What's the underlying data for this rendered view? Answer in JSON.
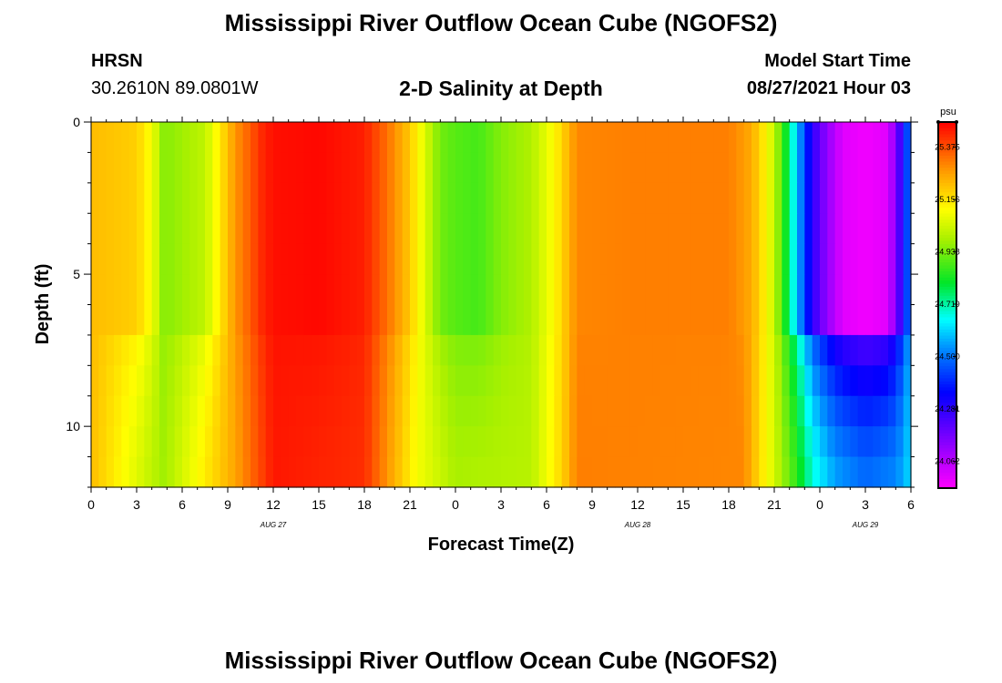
{
  "title": "Mississippi River Outflow Ocean Cube (NGOFS2)",
  "footer_title": "Mississippi River Outflow Ocean Cube (NGOFS2)",
  "station": {
    "id": "HRSN",
    "coords": "30.2610N  89.0801W"
  },
  "subtitle": "2-D Salinity at Depth",
  "model": {
    "label": "Model Start Time",
    "value": "08/27/2021 Hour 03"
  },
  "chart_data": {
    "type": "heatmap",
    "title": "2-D Salinity at Depth",
    "xlabel": "Forecast Time(Z)",
    "ylabel": "Depth (ft)",
    "x_range_hours": [
      0,
      54
    ],
    "y_range_ft": [
      0,
      12
    ],
    "x_ticks": [
      {
        "h": 0,
        "label": "0"
      },
      {
        "h": 3,
        "label": "3"
      },
      {
        "h": 6,
        "label": "6"
      },
      {
        "h": 9,
        "label": "9"
      },
      {
        "h": 12,
        "label": "12"
      },
      {
        "h": 15,
        "label": "15"
      },
      {
        "h": 18,
        "label": "18"
      },
      {
        "h": 21,
        "label": "21"
      },
      {
        "h": 24,
        "label": "0"
      },
      {
        "h": 27,
        "label": "3"
      },
      {
        "h": 30,
        "label": "6"
      },
      {
        "h": 33,
        "label": "9"
      },
      {
        "h": 36,
        "label": "12"
      },
      {
        "h": 39,
        "label": "15"
      },
      {
        "h": 42,
        "label": "18"
      },
      {
        "h": 45,
        "label": "21"
      },
      {
        "h": 48,
        "label": "0"
      },
      {
        "h": 51,
        "label": "3"
      },
      {
        "h": 54,
        "label": "6"
      }
    ],
    "date_labels": [
      {
        "h": 12,
        "label": "AUG  27"
      },
      {
        "h": 36,
        "label": "AUG  28"
      },
      {
        "h": 51,
        "label": "AUG  29"
      }
    ],
    "y_ticks": [
      {
        "v": 0,
        "label": "0"
      },
      {
        "v": 5,
        "label": "5"
      },
      {
        "v": 10,
        "label": "10"
      }
    ],
    "colorbar": {
      "unit": "psu",
      "min": 23.95,
      "max": 25.48,
      "ticks": [
        "25.375",
        "25.156",
        "24.938",
        "24.719",
        "24.500",
        "24.281",
        "24.062"
      ]
    },
    "depth_levels_ft": [
      0.5,
      1.5,
      2.5,
      3.5,
      4.5,
      5.5,
      6.5,
      7.5,
      8.5,
      9.5,
      10.5,
      11.5
    ],
    "surface_salinity_psu": [
      [
        0,
        25.22
      ],
      [
        3,
        25.19
      ],
      [
        4,
        25.1
      ],
      [
        4.8,
        24.95
      ],
      [
        6,
        24.98
      ],
      [
        7.5,
        25.02
      ],
      [
        8.5,
        25.15
      ],
      [
        9.5,
        25.28
      ],
      [
        10.5,
        25.36
      ],
      [
        11.3,
        25.43
      ],
      [
        12,
        25.46
      ],
      [
        15,
        25.47
      ],
      [
        18,
        25.44
      ],
      [
        19.5,
        25.33
      ],
      [
        21,
        25.2
      ],
      [
        22,
        25.06
      ],
      [
        23,
        24.93
      ],
      [
        24,
        24.9
      ],
      [
        25.5,
        24.88
      ],
      [
        27,
        24.95
      ],
      [
        29,
        25.0
      ],
      [
        30.5,
        25.12
      ],
      [
        32,
        25.3
      ],
      [
        36,
        25.31
      ],
      [
        42,
        25.31
      ],
      [
        43.5,
        25.25
      ],
      [
        44.5,
        25.12
      ],
      [
        45.3,
        24.95
      ],
      [
        46,
        24.75
      ],
      [
        46.8,
        24.5
      ],
      [
        47.5,
        24.28
      ],
      [
        48.5,
        24.12
      ],
      [
        49.5,
        24.0
      ],
      [
        51,
        23.97
      ],
      [
        52.5,
        24.0
      ],
      [
        53.3,
        24.25
      ],
      [
        54,
        24.55
      ]
    ],
    "deep_salinity_psu": [
      [
        0,
        25.22
      ],
      [
        4.8,
        24.98
      ],
      [
        9.5,
        25.26
      ],
      [
        12,
        25.45
      ],
      [
        18,
        25.42
      ],
      [
        21.5,
        25.1
      ],
      [
        24,
        24.99
      ],
      [
        29,
        25.01
      ],
      [
        31,
        25.18
      ],
      [
        32,
        25.31
      ],
      [
        43,
        25.3
      ],
      [
        45,
        25.05
      ],
      [
        46.5,
        24.85
      ],
      [
        47.5,
        24.68
      ],
      [
        49,
        24.55
      ],
      [
        51,
        24.48
      ],
      [
        53,
        24.52
      ],
      [
        54,
        24.62
      ]
    ],
    "deep_weights_by_level": [
      0,
      0,
      0,
      0,
      0,
      0,
      0,
      0.55,
      0.7,
      0.82,
      0.92,
      1.0
    ]
  }
}
